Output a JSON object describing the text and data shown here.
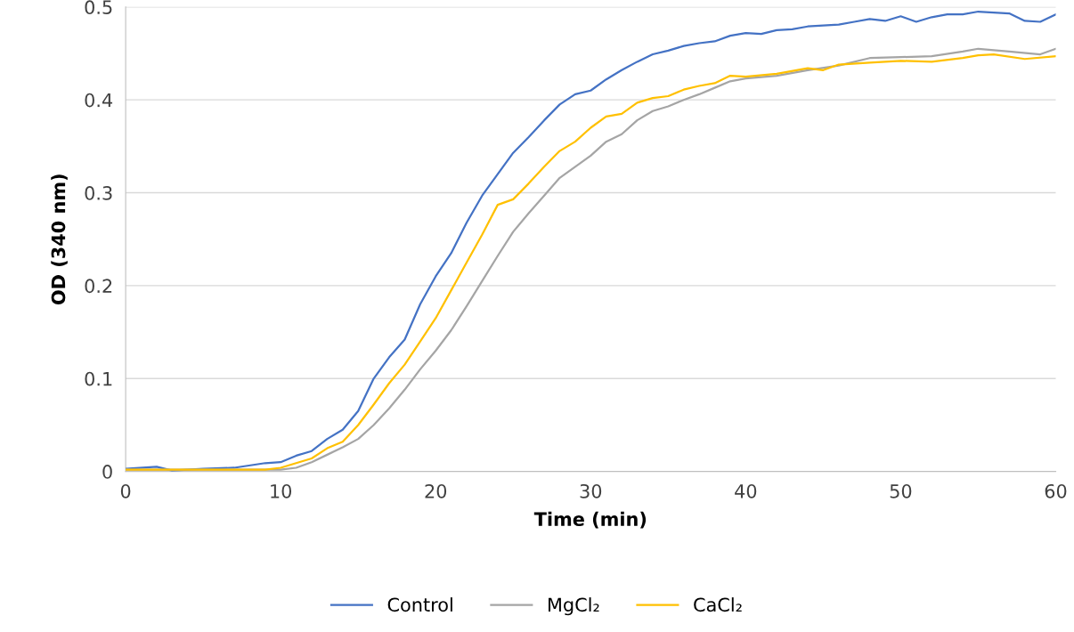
{
  "chart_data": {
    "type": "line",
    "xlabel": "Time (min)",
    "ylabel": "OD (340 nm)",
    "xlim": [
      0,
      60
    ],
    "xticks": [
      0,
      10,
      20,
      30,
      40,
      50,
      60
    ],
    "ylim": [
      0,
      0.5
    ],
    "yticks": [
      0,
      0.1,
      0.2,
      0.3,
      0.4,
      0.5
    ],
    "grid": "y",
    "legend": "bottom",
    "marker": "none",
    "line_style": "solid",
    "series": [
      {
        "name": "Control",
        "color": "#4472c4",
        "x": [
          0,
          2,
          3,
          5,
          7,
          9,
          10,
          11,
          12,
          13,
          14,
          15,
          16,
          17,
          18,
          19,
          20,
          21,
          22,
          23,
          24,
          25,
          26,
          27,
          28,
          29,
          30,
          31,
          32,
          33,
          34,
          35,
          36,
          37,
          38,
          39,
          40,
          41,
          42,
          43,
          44,
          45,
          46,
          47,
          48,
          49,
          50,
          51,
          52,
          53,
          54,
          55,
          56,
          57,
          58,
          59,
          60
        ],
        "values": [
          0.003,
          0.005,
          0.001,
          0.003,
          0.004,
          0.009,
          0.01,
          0.017,
          0.022,
          0.035,
          0.045,
          0.065,
          0.1,
          0.123,
          0.142,
          0.18,
          0.21,
          0.235,
          0.268,
          0.297,
          0.32,
          0.343,
          0.36,
          0.378,
          0.395,
          0.406,
          0.41,
          0.422,
          0.432,
          0.441,
          0.449,
          0.453,
          0.458,
          0.461,
          0.463,
          0.469,
          0.472,
          0.471,
          0.475,
          0.476,
          0.479,
          0.48,
          0.481,
          0.484,
          0.487,
          0.485,
          0.49,
          0.484,
          0.489,
          0.492,
          0.492,
          0.495,
          0.494,
          0.493,
          0.485,
          0.484,
          0.492
        ]
      },
      {
        "name": "MgCl₂",
        "color": "#a5a5a5",
        "x": [
          0,
          5,
          10,
          11,
          12,
          13,
          14,
          15,
          16,
          17,
          18,
          19,
          20,
          21,
          22,
          23,
          24,
          25,
          26,
          27,
          28,
          29,
          30,
          31,
          32,
          33,
          34,
          35,
          36,
          37,
          38,
          39,
          40,
          42,
          44,
          46,
          48,
          50,
          52,
          54,
          55,
          57,
          59,
          60
        ],
        "values": [
          0.002,
          0.002,
          0.002,
          0.004,
          0.01,
          0.018,
          0.026,
          0.035,
          0.05,
          0.068,
          0.088,
          0.11,
          0.13,
          0.152,
          0.178,
          0.205,
          0.232,
          0.258,
          0.278,
          0.297,
          0.316,
          0.328,
          0.34,
          0.355,
          0.363,
          0.378,
          0.388,
          0.393,
          0.4,
          0.406,
          0.413,
          0.42,
          0.423,
          0.426,
          0.432,
          0.437,
          0.445,
          0.446,
          0.447,
          0.452,
          0.455,
          0.452,
          0.449,
          0.455
        ]
      },
      {
        "name": "CaCl₂",
        "color": "#ffc000",
        "x": [
          0,
          5,
          9,
          10,
          11,
          12,
          13,
          14,
          15,
          16,
          17,
          18,
          19,
          20,
          21,
          22,
          23,
          24,
          25,
          26,
          27,
          28,
          29,
          30,
          31,
          32,
          33,
          34,
          35,
          36,
          37,
          38,
          39,
          40,
          42,
          44,
          45,
          46,
          48,
          50,
          52,
          54,
          55,
          56,
          58,
          60
        ],
        "values": [
          0.002,
          0.002,
          0.002,
          0.004,
          0.009,
          0.014,
          0.025,
          0.032,
          0.05,
          0.072,
          0.095,
          0.115,
          0.14,
          0.165,
          0.195,
          0.225,
          0.255,
          0.287,
          0.293,
          0.31,
          0.328,
          0.345,
          0.355,
          0.37,
          0.382,
          0.385,
          0.397,
          0.402,
          0.404,
          0.411,
          0.415,
          0.418,
          0.426,
          0.425,
          0.428,
          0.434,
          0.432,
          0.438,
          0.44,
          0.442,
          0.441,
          0.445,
          0.448,
          0.449,
          0.444,
          0.447
        ]
      }
    ]
  }
}
